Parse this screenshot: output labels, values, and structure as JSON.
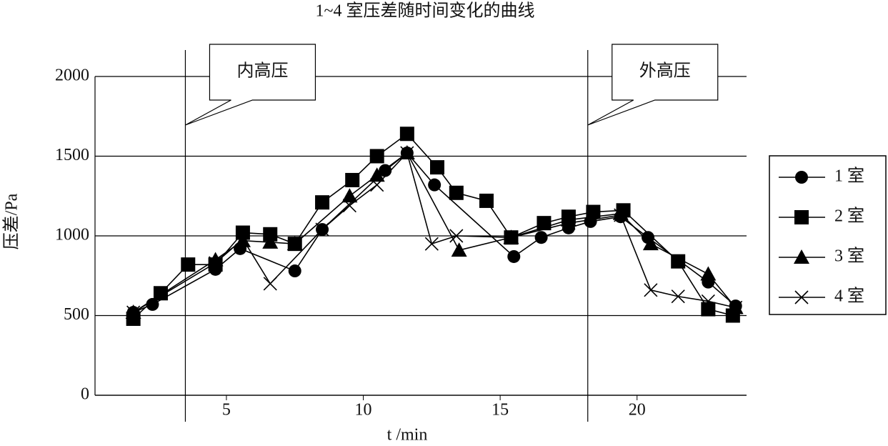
{
  "chart_data": {
    "type": "line",
    "title": "1~4 室压差随时间变化的曲线",
    "x_label": "t /min",
    "y_label": "压差/Pa",
    "xlim": [
      0.2,
      24
    ],
    "ylim": [
      0,
      2000
    ],
    "xticks": [
      5,
      10,
      15,
      20
    ],
    "yticks": [
      0,
      500,
      1000,
      1500,
      2000
    ],
    "grid": true,
    "legend": "right",
    "annotations": [
      {
        "text": "内高压",
        "x": 3.5
      },
      {
        "text": "外高压",
        "x": 18.2
      }
    ],
    "series": [
      {
        "name": "1 室",
        "color": "#000000",
        "marker": "circle",
        "x": [
          1.6,
          2.3,
          4.6,
          5.5,
          7.5,
          8.5,
          10.8,
          11.6,
          12.6,
          15.5,
          16.5,
          17.5,
          18.3,
          19.4,
          20.4,
          22.6,
          23.6
        ],
        "values": [
          520,
          570,
          790,
          920,
          780,
          1040,
          1410,
          1520,
          1320,
          870,
          990,
          1050,
          1090,
          1120,
          990,
          710,
          560
        ]
      },
      {
        "name": "2 室",
        "color": "#000000",
        "marker": "square",
        "x": [
          1.6,
          2.6,
          3.6,
          4.6,
          5.6,
          6.6,
          7.5,
          8.5,
          9.6,
          10.5,
          11.6,
          12.7,
          13.4,
          14.5,
          15.4,
          16.6,
          17.5,
          18.4,
          19.5,
          21.5,
          22.6,
          23.5
        ],
        "values": [
          480,
          640,
          820,
          820,
          1020,
          1010,
          950,
          1210,
          1350,
          1500,
          1640,
          1430,
          1270,
          1220,
          990,
          1080,
          1120,
          1150,
          1160,
          840,
          540,
          500
        ]
      },
      {
        "name": "3 室",
        "color": "#000000",
        "marker": "triangle",
        "x": [
          1.6,
          4.6,
          5.6,
          6.6,
          7.5,
          9.5,
          10.5,
          11.6,
          13.5,
          15.4,
          17.5,
          19.4,
          20.5,
          22.6,
          23.6
        ],
        "values": [
          520,
          850,
          970,
          960,
          950,
          1250,
          1380,
          1520,
          910,
          990,
          1100,
          1140,
          950,
          760,
          550
        ]
      },
      {
        "name": "4 室",
        "color": "#000000",
        "marker": "cross",
        "x": [
          1.6,
          4.6,
          5.6,
          6.6,
          8.5,
          9.5,
          10.5,
          11.6,
          12.5,
          13.4,
          15.4,
          17.5,
          19.4,
          20.5,
          21.5,
          22.6,
          23.6
        ],
        "values": [
          520,
          830,
          980,
          700,
          1040,
          1190,
          1320,
          1520,
          950,
          1000,
          990,
          1080,
          1130,
          660,
          620,
          590,
          550
        ]
      }
    ]
  }
}
